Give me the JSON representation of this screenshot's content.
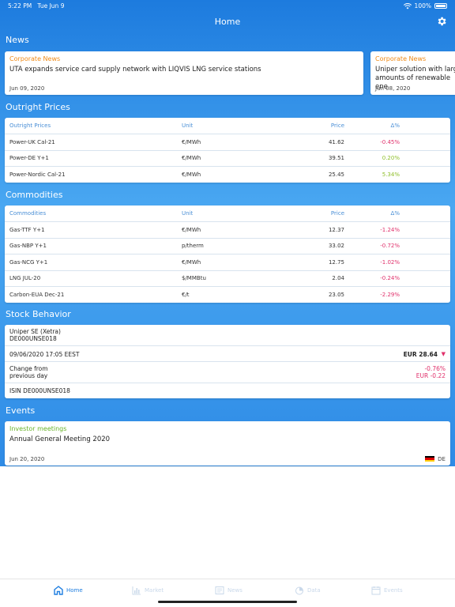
{
  "status_bar": {
    "time": "5:22 PM",
    "date": "Tue Jun 9",
    "battery": "100%"
  },
  "nav": {
    "title": "Home"
  },
  "colors": {
    "accent": "#1f7ee0",
    "news_category": "#f08a16",
    "event_category": "#6ab42a",
    "negative": "#e0306b",
    "positive": "#8fbf2a"
  },
  "sections": {
    "news": "News",
    "outright": "Outright Prices",
    "commodities": "Commodities",
    "stock": "Stock Behavior",
    "events": "Events"
  },
  "news": [
    {
      "category": "Corporate News",
      "headline": "UTA expands service card supply network with LIQVIS LNG service stations",
      "date": "Jun 09, 2020"
    },
    {
      "category": "Corporate News",
      "headline": "Uniper solution with large amounts of renewable ene",
      "date": "Jun 08, 2020"
    }
  ],
  "outright": {
    "headers": [
      "Outright Prices",
      "Unit",
      "Price",
      "Δ%"
    ],
    "rows": [
      {
        "name": "Power-UK Cal-21",
        "unit": "€/MWh",
        "price": "41.62",
        "delta": "-0.45%",
        "dir": "neg"
      },
      {
        "name": "Power-DE Y+1",
        "unit": "€/MWh",
        "price": "39.51",
        "delta": "0.20%",
        "dir": "pos"
      },
      {
        "name": "Power-Nordic Cal-21",
        "unit": "€/MWh",
        "price": "25.45",
        "delta": "5.34%",
        "dir": "pos"
      }
    ]
  },
  "commodities": {
    "headers": [
      "Commodities",
      "Unit",
      "Price",
      "Δ%"
    ],
    "rows": [
      {
        "name": "Gas-TTF Y+1",
        "unit": "€/MWh",
        "price": "12.37",
        "delta": "-1.24%",
        "dir": "neg"
      },
      {
        "name": "Gas-NBP Y+1",
        "unit": "p/therm",
        "price": "33.02",
        "delta": "-0.72%",
        "dir": "neg"
      },
      {
        "name": "Gas-NCG Y+1",
        "unit": "€/MWh",
        "price": "12.75",
        "delta": "-1.02%",
        "dir": "neg"
      },
      {
        "name": "LNG JUL-20",
        "unit": "$/MMBtu",
        "price": "2.04",
        "delta": "-0.24%",
        "dir": "neg"
      },
      {
        "name": "Carbon-EUA Dec-21",
        "unit": "€/t",
        "price": "23.05",
        "delta": "-2.29%",
        "dir": "neg"
      }
    ]
  },
  "stock": {
    "company": "Uniper SE (Xetra)",
    "code": "DE000UNSE018",
    "timestamp": "09/06/2020 17:05 EEST",
    "price": "EUR 28.64",
    "change_label_1": "Change from",
    "change_label_2": "previous day",
    "change_pct": "-0.76%",
    "change_abs": "EUR -0.22",
    "isin": "ISIN DE000UNSE018"
  },
  "events": [
    {
      "category": "Investor meetings",
      "title": "Annual General Meeting 2020",
      "date": "Jun 20, 2020",
      "lang": "DE"
    }
  ],
  "tabs": [
    {
      "label": "Home",
      "icon": "home-icon"
    },
    {
      "label": "Market",
      "icon": "chart-icon"
    },
    {
      "label": "News",
      "icon": "news-icon"
    },
    {
      "label": "Data",
      "icon": "pie-icon"
    },
    {
      "label": "Events",
      "icon": "calendar-icon"
    }
  ]
}
